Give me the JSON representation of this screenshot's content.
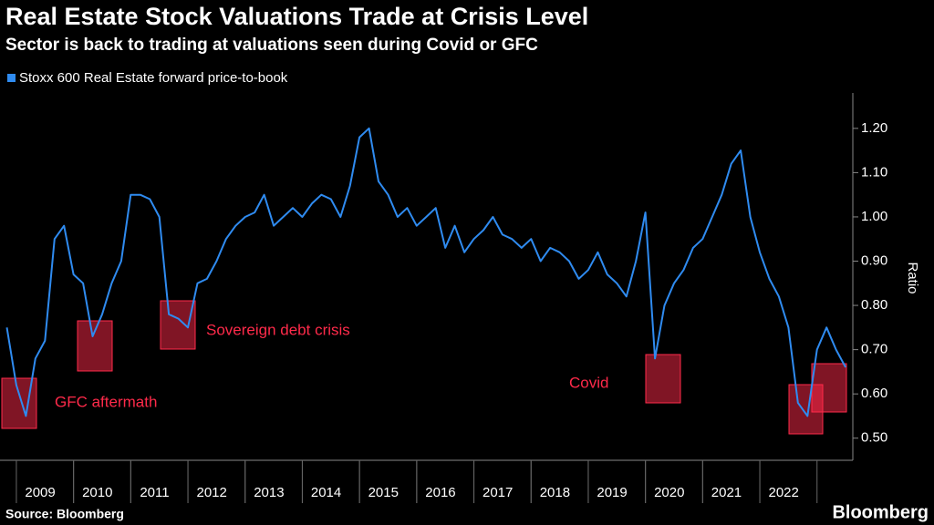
{
  "chart_data": {
    "type": "line",
    "title": "Real Estate Stock Valuations Trade at Crisis Level",
    "subtitle": "Sector is back to trading at valuations seen during Covid or GFC",
    "y_axis_label": "Ratio",
    "source": "Source: Bloomberg",
    "brand": "Bloomberg",
    "annotations": [
      "GFC aftermath",
      "Sovereign debt crisis",
      "Covid"
    ],
    "categories": [
      null,
      null,
      null,
      null,
      "2009",
      null,
      null,
      null,
      null,
      null,
      "2010",
      null,
      null,
      null,
      null,
      null,
      "2011",
      null,
      null,
      null,
      null,
      null,
      "2012",
      null,
      null,
      null,
      null,
      null,
      "2013",
      null,
      null,
      null,
      null,
      null,
      "2014",
      null,
      null,
      null,
      null,
      null,
      "2015",
      null,
      null,
      null,
      null,
      null,
      "2016",
      null,
      null,
      null,
      null,
      null,
      "2017",
      null,
      null,
      null,
      null,
      null,
      "2018",
      null,
      null,
      null,
      null,
      null,
      "2019",
      null,
      null,
      null,
      null,
      null,
      "2020",
      null,
      null,
      null,
      null,
      null,
      "2021",
      null,
      null,
      null,
      null,
      null,
      "2022",
      null,
      null,
      null,
      null,
      null,
      null
    ],
    "series": [
      {
        "name": "Stoxx 600 Real Estate forward price-to-book",
        "color": "#2f8bf0",
        "values": [
          0.75,
          0.62,
          0.55,
          0.68,
          0.72,
          0.95,
          0.98,
          0.87,
          0.85,
          0.73,
          0.78,
          0.85,
          0.9,
          1.05,
          1.05,
          1.04,
          1.0,
          0.78,
          0.77,
          0.75,
          0.85,
          0.86,
          0.9,
          0.95,
          0.98,
          1.0,
          1.01,
          1.05,
          0.98,
          1.0,
          1.02,
          1.0,
          1.03,
          1.05,
          1.04,
          1.0,
          1.07,
          1.18,
          1.2,
          1.08,
          1.05,
          1.0,
          1.02,
          0.98,
          1.0,
          1.02,
          0.93,
          0.98,
          0.92,
          0.95,
          0.97,
          1.0,
          0.96,
          0.95,
          0.93,
          0.95,
          0.9,
          0.93,
          0.92,
          0.9,
          0.86,
          0.88,
          0.92,
          0.87,
          0.85,
          0.82,
          0.9,
          1.01,
          0.68,
          0.8,
          0.85,
          0.88,
          0.93,
          0.95,
          1.0,
          1.05,
          1.12,
          1.15,
          1.0,
          0.92,
          0.86,
          0.82,
          0.75,
          0.58,
          0.55,
          0.7,
          0.75,
          0.7,
          0.66
        ]
      }
    ],
    "ylim": [
      0.45,
      1.28
    ],
    "yticks": [
      {
        "value": 0.5,
        "label": "0.50"
      },
      {
        "value": 0.6,
        "label": "0.60"
      },
      {
        "value": 0.7,
        "label": "0.70"
      },
      {
        "value": 0.8,
        "label": "0.80"
      },
      {
        "value": 0.9,
        "label": "0.90"
      },
      {
        "value": 1.0,
        "label": "1.00"
      },
      {
        "value": 1.1,
        "label": "1.10"
      },
      {
        "value": 1.2,
        "label": "1.20"
      }
    ]
  }
}
